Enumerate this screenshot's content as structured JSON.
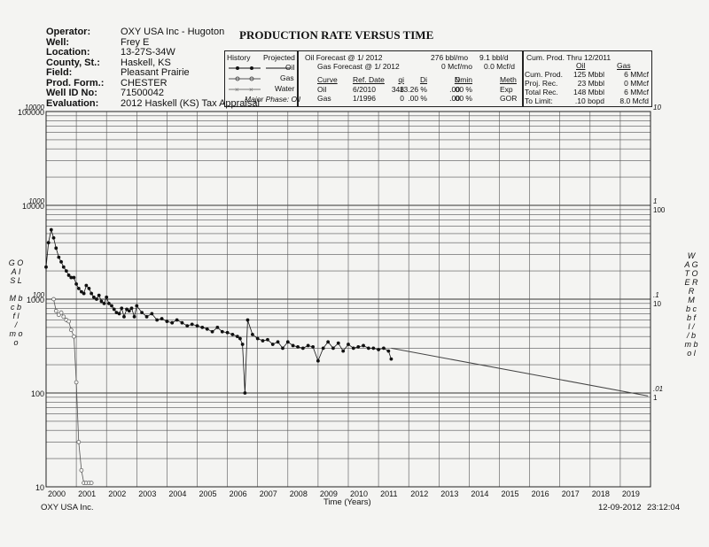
{
  "header": {
    "title": "PRODUCTION RATE VERSUS TIME",
    "fields": [
      {
        "label": "Operator:",
        "value": "OXY USA Inc - Hugoton"
      },
      {
        "label": "Well:",
        "value": "Frey E"
      },
      {
        "label": "Location:",
        "value": "13-27S-34W"
      },
      {
        "label": "County, St.:",
        "value": "Haskell, KS"
      },
      {
        "label": "Field:",
        "value": "Pleasant Prairie"
      },
      {
        "label": "Prod. Form.:",
        "value": "CHESTER"
      },
      {
        "label": "Well ID No:",
        "value": "71500042"
      },
      {
        "label": "Evaluation:",
        "value": "2012 Haskell (KS) Tax Appraisal"
      }
    ]
  },
  "legend_box": {
    "history": "History",
    "projected": "Projected",
    "oil": "Oil",
    "gas": "Gas",
    "water": "Water",
    "major_phase": "Major Phase: Oil"
  },
  "forecast_box": {
    "oil_forecast_label": "Oil Forecast @ 1/ 2012",
    "oil_forecast_mo": "276 bbl/mo",
    "oil_forecast_d": "9.1 bbl/d",
    "gas_forecast_label": "Gas Forecast @ 1/ 2012",
    "gas_forecast_mo": "0 Mcf/mo",
    "gas_forecast_d": "0.0 Mcf/d",
    "columns": [
      "Curve",
      "Ref. Date",
      "qi",
      "Di",
      "N",
      "Dmin",
      "Meth"
    ],
    "rows": [
      [
        "Oil",
        "6/2010",
        "348",
        "13.26 %",
        ".00",
        ".00 %",
        "Exp"
      ],
      [
        "Gas",
        "1/1996",
        "0",
        ".00 %",
        ".00",
        ".00 %",
        "GOR"
      ]
    ]
  },
  "cum_box": {
    "title": "Cum. Prod. Thru 12/2011",
    "col_oil": "Oil",
    "col_gas": "Gas",
    "rows": [
      [
        "Cum. Prod.",
        "125 Mbbl",
        "6 MMcf"
      ],
      [
        "Proj. Rec.",
        "23 Mbbl",
        "0 MMcf"
      ],
      [
        "Total Rec.",
        "148 Mbbl",
        "6 MMcf"
      ],
      [
        "To Limit:",
        ".10 bopd",
        "8.0 Mcfd"
      ]
    ]
  },
  "left_axis_label": [
    "G O",
    "A I",
    "S L",
    "",
    "M b",
    "c b",
    "f l",
    "/",
    "m o",
    "o"
  ],
  "right_axis_label": [
    "W",
    "A G",
    "T O",
    "E R",
    "R",
    "M",
    "b c",
    "b f",
    "l /",
    "/ b",
    "m b",
    "o l"
  ],
  "footer": {
    "left": "OXY USA Inc.",
    "xlabel": "Time (Years)",
    "date": "12-09-2012",
    "time": "23:12:04"
  },
  "chart_data": {
    "type": "line",
    "title": "PRODUCTION RATE VERSUS TIME",
    "xlabel": "Time (Years)",
    "xlim": [
      2000,
      2020
    ],
    "x_ticks": [
      "2000",
      "2001",
      "2002",
      "2003",
      "2004",
      "2005",
      "2006",
      "2007",
      "2008",
      "2009",
      "2010",
      "2011",
      "2012",
      "2013",
      "2014",
      "2015",
      "2016",
      "2017",
      "2018",
      "2019"
    ],
    "left_scale": "log",
    "left_outer_labels": [
      "100000",
      "10000",
      "1000",
      "100",
      "10"
    ],
    "left_inner_labels": [
      "10000",
      "1000",
      "100"
    ],
    "right_outer_labels": [
      "10",
      "1",
      ".1",
      ".01"
    ],
    "right_inner_labels": [
      "100",
      "10",
      "1"
    ],
    "ylim": [
      10,
      100000
    ],
    "grid": true,
    "series": [
      {
        "name": "Oil",
        "color": "#111111",
        "marker": "filled-circle",
        "x": [
          2000.0,
          2000.08,
          2000.17,
          2000.25,
          2000.33,
          2000.42,
          2000.5,
          2000.58,
          2000.67,
          2000.75,
          2000.83,
          2000.92,
          2001.0,
          2001.08,
          2001.17,
          2001.25,
          2001.33,
          2001.42,
          2001.5,
          2001.58,
          2001.67,
          2001.75,
          2001.83,
          2001.92,
          2002.0,
          2002.08,
          2002.17,
          2002.25,
          2002.33,
          2002.42,
          2002.5,
          2002.58,
          2002.67,
          2002.75,
          2002.83,
          2002.92,
          2003.0,
          2003.17,
          2003.33,
          2003.5,
          2003.67,
          2003.83,
          2004.0,
          2004.17,
          2004.33,
          2004.5,
          2004.67,
          2004.83,
          2005.0,
          2005.17,
          2005.33,
          2005.5,
          2005.67,
          2005.83,
          2006.0,
          2006.17,
          2006.33,
          2006.42,
          2006.5,
          2006.58,
          2006.67,
          2006.83,
          2007.0,
          2007.17,
          2007.33,
          2007.5,
          2007.67,
          2007.83,
          2008.0,
          2008.17,
          2008.33,
          2008.5,
          2008.67,
          2008.83,
          2009.0,
          2009.17,
          2009.33,
          2009.5,
          2009.67,
          2009.83,
          2010.0,
          2010.17,
          2010.33,
          2010.5,
          2010.67,
          2010.83,
          2011.0,
          2011.17,
          2011.33,
          2011.42
        ],
        "values": [
          2200,
          4000,
          5500,
          4500,
          3500,
          2800,
          2500,
          2200,
          2000,
          1800,
          1700,
          1700,
          1450,
          1300,
          1200,
          1150,
          1400,
          1300,
          1150,
          1050,
          1000,
          1100,
          950,
          900,
          1050,
          900,
          850,
          780,
          720,
          700,
          800,
          650,
          780,
          750,
          800,
          650,
          850,
          720,
          650,
          700,
          600,
          620,
          580,
          560,
          600,
          560,
          520,
          540,
          520,
          500,
          480,
          450,
          500,
          450,
          440,
          420,
          400,
          380,
          330,
          100,
          600,
          420,
          380,
          360,
          370,
          330,
          350,
          300,
          350,
          320,
          310,
          300,
          320,
          310,
          220,
          300,
          350,
          300,
          340,
          280,
          330,
          300,
          310,
          320,
          300,
          300,
          290,
          300,
          280,
          230
        ]
      },
      {
        "name": "Gas",
        "color": "#555555",
        "marker": "open-circle",
        "x": [
          2000.25,
          2000.33,
          2000.42,
          2000.5,
          2000.58,
          2000.67,
          2000.75,
          2000.83,
          2000.92,
          2001.0,
          2001.08,
          2001.17,
          2001.25,
          2001.33,
          2001.42,
          2001.5
        ],
        "values": [
          1000,
          750,
          680,
          720,
          650,
          600,
          580,
          470,
          400,
          130,
          30,
          15,
          11,
          11,
          11,
          11
        ]
      }
    ],
    "forecast": {
      "name": "Oil projected",
      "x": [
        2011.42,
        2019.92
      ],
      "values": [
        300,
        93
      ]
    }
  }
}
